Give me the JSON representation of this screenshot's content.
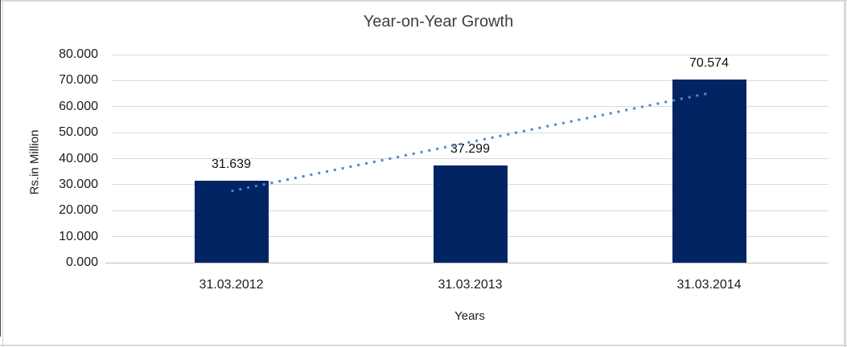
{
  "chart_data": {
    "type": "bar",
    "title": "Year-on-Year Growth",
    "categories": [
      "31.03.2012",
      "31.03.2013",
      "31.03.2014"
    ],
    "values": [
      31.639,
      37.299,
      70.574
    ],
    "data_labels": [
      "31.639",
      "37.299",
      "70.574"
    ],
    "xlabel": "Years",
    "ylabel": "Rs.in Million",
    "ylim": [
      0,
      80
    ],
    "ytick_labels": [
      "0.000",
      "10.000",
      "20.000",
      "30.000",
      "40.000",
      "50.000",
      "60.000",
      "70.000",
      "80.000"
    ],
    "grid": true,
    "legend_position": "none",
    "trendline": {
      "style": "dotted",
      "start": {
        "category_index": 0,
        "value": 27.5
      },
      "end": {
        "category_index": 2,
        "value": 65.2
      }
    }
  },
  "colors": {
    "bar_fill": "#022462",
    "trendline": "#4E87C9",
    "gridline": "#D9D9D9",
    "baseline": "#BFBFBF",
    "title_text": "#3E3E3E",
    "axis_text": "#1C1C1C",
    "label_text": "#111111",
    "frame_light": "#D8D8D8",
    "frame_dark": "#4A4A4A"
  }
}
